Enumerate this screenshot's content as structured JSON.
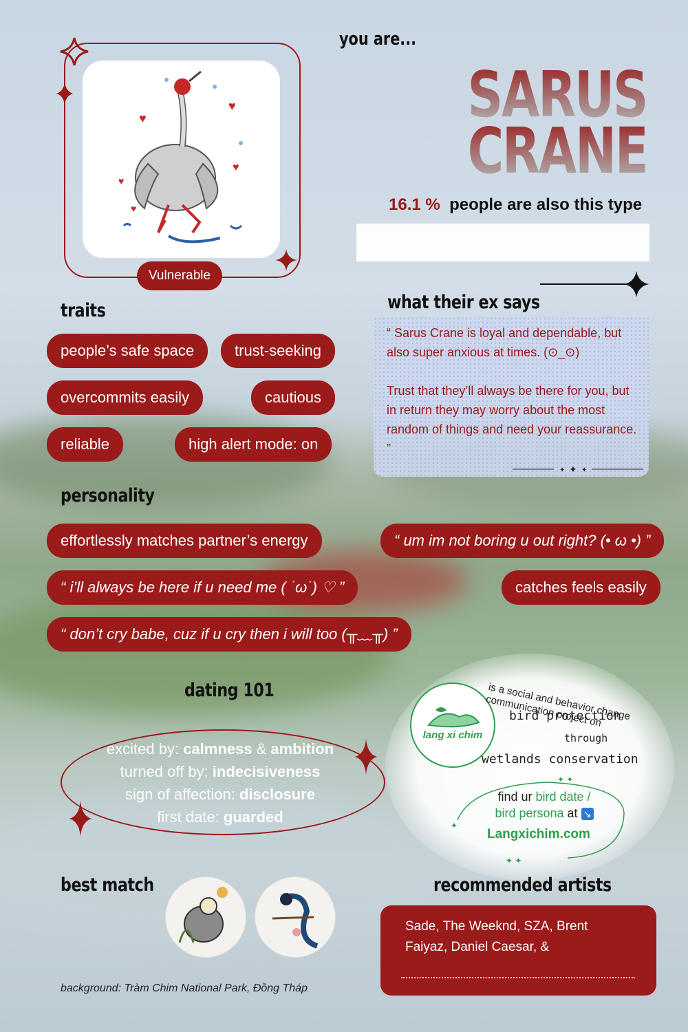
{
  "header": {
    "you_are": "you are..."
  },
  "type": {
    "title_line1": "SARUS",
    "title_line2": "CRANE",
    "percent": "16.1 %",
    "percent_suffix": "people are also this type",
    "tag": "Vulnerable"
  },
  "traits": {
    "heading": "traits",
    "items": [
      "people’s safe space",
      "trust-seeking",
      "overcommits easily",
      "cautious",
      "reliable",
      "high alert mode: on"
    ]
  },
  "ex": {
    "heading": "what their ex says",
    "quote_p1": "“  Sarus Crane is loyal and dependable, but also super anxious at times. (⊙_⊙)",
    "quote_p2": "Trust that they’ll always be there for you, but in return they may worry about the most random of things and need your reassurance.  ”"
  },
  "personality": {
    "heading": "personality",
    "items": [
      "effortlessly matches partner’s energy",
      "“ um im not boring u out right? (• ω •) ”",
      "“ i’ll always be here if u need me  ( ˙ω˙) ♡ ”",
      "catches feels easily",
      "“ don’t cry babe, cuz if u cry then i will too  (╥﹏╥) ”"
    ]
  },
  "dating": {
    "heading": "dating 101",
    "excited_label": "excited by:",
    "excited_value1": "calmness",
    "excited_amp": "&",
    "excited_value2": "ambition",
    "off_label": "turned off by:",
    "off_value": "indecisiveness",
    "affection_label": "sign of affection:",
    "affection_value": "disclosure",
    "first_label": "first date:",
    "first_value": "guarded"
  },
  "project": {
    "logo_text": "lang xi chim",
    "arc_text": "is a social and behavior change communication project on",
    "line1": "bird protection",
    "line2": "through",
    "line3": "wetlands conservation",
    "find_prefix": "find ur",
    "find_link1": "bird date /",
    "find_link2": "bird persona",
    "find_suffix": "at",
    "arrow": "↘",
    "url": "Langxichim.com"
  },
  "best_match": {
    "heading": "best match"
  },
  "artists": {
    "heading": "recommended artists",
    "text": "Sade, The Weeknd, SZA, Brent Faiyaz, Daniel Caesar, &"
  },
  "footer": {
    "caption": "background: Tràm Chim National Park, Đồng Tháp"
  },
  "colors": {
    "accent": "#9b1a1a",
    "link": "#2e9e4f"
  }
}
